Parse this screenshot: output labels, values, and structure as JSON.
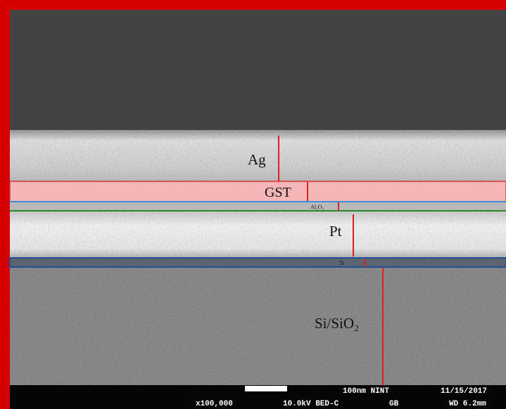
{
  "layers": [
    {
      "label": "Ag"
    },
    {
      "label": "GST"
    },
    {
      "label": "Al₂O₃"
    },
    {
      "label": "Pt"
    },
    {
      "label": "Ti"
    },
    {
      "label": "Si/SiO₂"
    }
  ],
  "info_bar": {
    "scale": "100nm NINT",
    "date": "11/15/2017",
    "magnification": "x100,000",
    "voltage": "10.0kV BED-C",
    "mode": "GB",
    "working_distance": "WD 6.2mm"
  }
}
